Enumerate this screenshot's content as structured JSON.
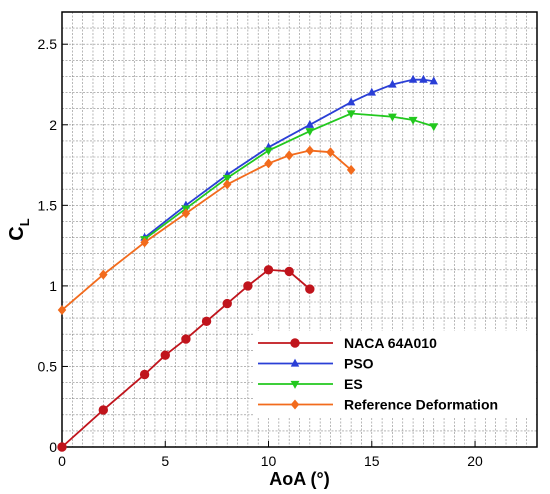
{
  "chart_data": {
    "type": "line",
    "xlabel": "AoA (°)",
    "ylabel_main": "C",
    "ylabel_sub": "L",
    "xlim": [
      0,
      23
    ],
    "ylim": [
      0,
      2.7
    ],
    "x_ticks": [
      0,
      5,
      10,
      15,
      20
    ],
    "y_ticks": [
      0,
      0.5,
      1,
      1.5,
      2,
      2.5
    ],
    "x_tick_labels": [
      "0",
      "5",
      "10",
      "15",
      "20"
    ],
    "y_tick_labels": [
      "0",
      "0.5",
      "1",
      "1.5",
      "2",
      "2.5"
    ],
    "grid": true,
    "grid_minor_x_step": 0.5,
    "grid_minor_y_step": 0.1,
    "legend_position": "bottom-right",
    "series": [
      {
        "name": "NACA 64A010",
        "color": "#c0141c",
        "marker": "circle",
        "x": [
          0,
          2,
          4,
          5,
          6,
          7,
          8,
          9,
          10,
          11,
          12
        ],
        "y": [
          0.0,
          0.23,
          0.45,
          0.57,
          0.67,
          0.78,
          0.89,
          1.0,
          1.1,
          1.09,
          0.98
        ]
      },
      {
        "name": "PSO",
        "color": "#2a3fd6",
        "marker": "triangle-up",
        "x": [
          4,
          6,
          8,
          10,
          12,
          14,
          15,
          16,
          17,
          17.5,
          18
        ],
        "y": [
          1.3,
          1.5,
          1.69,
          1.86,
          2.0,
          2.14,
          2.2,
          2.25,
          2.28,
          2.28,
          2.27
        ]
      },
      {
        "name": "ES",
        "color": "#22c81e",
        "marker": "triangle-down",
        "x": [
          4,
          6,
          8,
          10,
          12,
          14,
          16,
          17,
          18
        ],
        "y": [
          1.29,
          1.48,
          1.67,
          1.84,
          1.96,
          2.07,
          2.05,
          2.03,
          1.99
        ]
      },
      {
        "name": "Reference Deformation",
        "color": "#f26b1d",
        "marker": "diamond",
        "x": [
          0,
          2,
          4,
          6,
          8,
          10,
          11,
          12,
          13,
          14
        ],
        "y": [
          0.85,
          1.07,
          1.27,
          1.45,
          1.63,
          1.76,
          1.81,
          1.84,
          1.83,
          1.72
        ]
      }
    ]
  }
}
